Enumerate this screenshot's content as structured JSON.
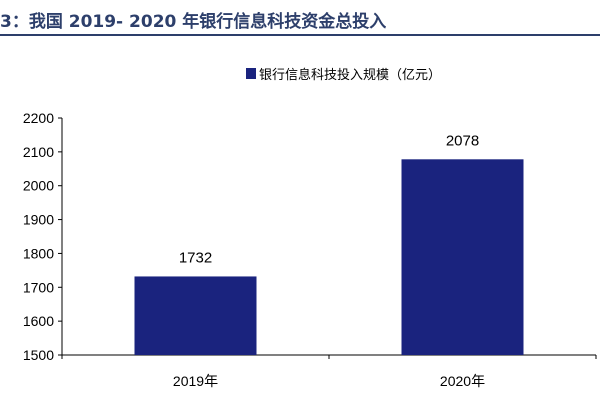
{
  "header": {
    "title": "3：我国 2019- 2020 年银行信息科技资金总投入",
    "color": "#2d3f6b"
  },
  "chart_data": {
    "type": "bar",
    "categories": [
      "2019年",
      "2020年"
    ],
    "series": [
      {
        "name": "银行信息科技投入规模（亿元）",
        "values": [
          1732,
          2078
        ],
        "color": "#1a237e"
      }
    ],
    "ylim": [
      1500,
      2200
    ],
    "yticks": [
      "1500",
      "1600",
      "1700",
      "1800",
      "1900",
      "2000",
      "2100",
      "2200"
    ],
    "data_labels": [
      "1732",
      "2078"
    ],
    "legend_position": "top-right",
    "grid": false
  }
}
